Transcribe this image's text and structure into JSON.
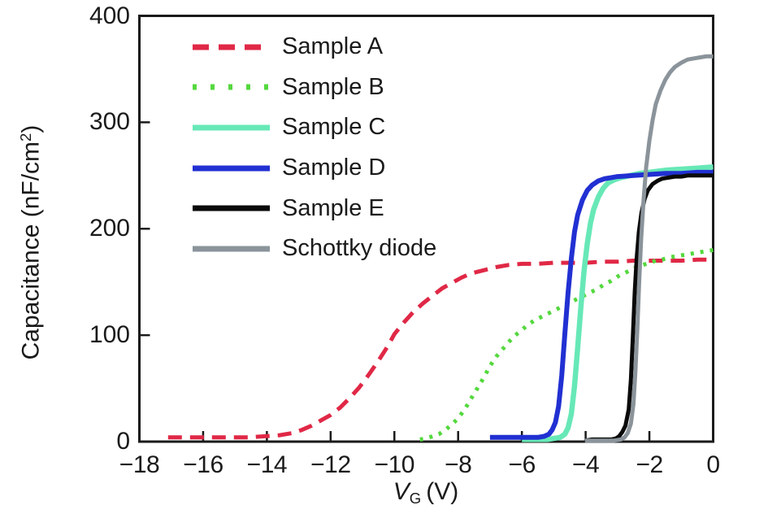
{
  "figure": {
    "background": "#ffffff",
    "axis_color": "#1a1a1a",
    "xlabel": {
      "var": "V",
      "sub": "G",
      "unit": " (V)"
    },
    "ylabel": {
      "pre": "Capacitance (nF/cm",
      "sup": "2",
      "post": ")"
    }
  },
  "chart_data": {
    "type": "line",
    "title": "",
    "xlabel": "V_G (V)",
    "ylabel": "Capacitance (nF/cm^2)",
    "xlim": [
      -18,
      0
    ],
    "ylim": [
      0,
      400
    ],
    "x_ticks": [
      -18,
      -16,
      -14,
      -12,
      -10,
      -8,
      -6,
      -4,
      -2,
      0
    ],
    "y_ticks": [
      0,
      100,
      200,
      300,
      400
    ],
    "grid": false,
    "legend_position": "upper-left-inside",
    "series": [
      {
        "name": "Sample A",
        "color": "#e02846",
        "style": "dashed",
        "width": 5,
        "points": [
          [
            -17.1,
            4
          ],
          [
            -16.6,
            4
          ],
          [
            -16.1,
            4
          ],
          [
            -15.6,
            4
          ],
          [
            -15.1,
            4
          ],
          [
            -14.6,
            4
          ],
          [
            -14.1,
            5
          ],
          [
            -13.6,
            6
          ],
          [
            -13.2,
            8
          ],
          [
            -12.9,
            11
          ],
          [
            -12.6,
            15
          ],
          [
            -12.3,
            20
          ],
          [
            -12.0,
            25
          ],
          [
            -11.7,
            32
          ],
          [
            -11.4,
            41
          ],
          [
            -11.1,
            51
          ],
          [
            -10.8,
            63
          ],
          [
            -10.5,
            76
          ],
          [
            -10.2,
            90
          ],
          [
            -10.0,
            101
          ],
          [
            -9.7,
            112
          ],
          [
            -9.4,
            122
          ],
          [
            -9.1,
            130
          ],
          [
            -8.8,
            137
          ],
          [
            -8.5,
            144
          ],
          [
            -8.2,
            149
          ],
          [
            -7.9,
            154
          ],
          [
            -7.6,
            158
          ],
          [
            -7.2,
            161
          ],
          [
            -6.8,
            164
          ],
          [
            -6.4,
            166
          ],
          [
            -6.0,
            167
          ],
          [
            -5.5,
            167
          ],
          [
            -5.0,
            168
          ],
          [
            -4.5,
            168
          ],
          [
            -4.0,
            168
          ],
          [
            -3.5,
            169
          ],
          [
            -3.0,
            169
          ],
          [
            -2.5,
            170
          ],
          [
            -2.0,
            170
          ],
          [
            -1.5,
            170
          ],
          [
            -1.0,
            170
          ],
          [
            -0.5,
            171
          ],
          [
            0,
            171
          ]
        ]
      },
      {
        "name": "Sample B",
        "color": "#54d83e",
        "style": "dotted",
        "width": 5,
        "points": [
          [
            -9.2,
            2
          ],
          [
            -9.0,
            3
          ],
          [
            -8.8,
            5
          ],
          [
            -8.6,
            7
          ],
          [
            -8.4,
            11
          ],
          [
            -8.2,
            16
          ],
          [
            -8.0,
            22
          ],
          [
            -7.8,
            30
          ],
          [
            -7.6,
            40
          ],
          [
            -7.4,
            50
          ],
          [
            -7.2,
            60
          ],
          [
            -7.0,
            71
          ],
          [
            -6.8,
            80
          ],
          [
            -6.6,
            87
          ],
          [
            -6.4,
            94
          ],
          [
            -6.2,
            100
          ],
          [
            -6.0,
            105
          ],
          [
            -5.8,
            110
          ],
          [
            -5.6,
            114
          ],
          [
            -5.4,
            117
          ],
          [
            -5.2,
            120
          ],
          [
            -5.0,
            123
          ],
          [
            -4.8,
            126
          ],
          [
            -4.6,
            129
          ],
          [
            -4.4,
            132
          ],
          [
            -4.2,
            135
          ],
          [
            -4.0,
            138
          ],
          [
            -3.8,
            141
          ],
          [
            -3.6,
            144
          ],
          [
            -3.4,
            148
          ],
          [
            -3.2,
            151
          ],
          [
            -3.0,
            155
          ],
          [
            -2.8,
            158
          ],
          [
            -2.6,
            161
          ],
          [
            -2.4,
            164
          ],
          [
            -2.2,
            166
          ],
          [
            -2.0,
            168
          ],
          [
            -1.8,
            170
          ],
          [
            -1.6,
            171
          ],
          [
            -1.4,
            173
          ],
          [
            -1.2,
            174
          ],
          [
            -1.0,
            175
          ],
          [
            -0.8,
            176
          ],
          [
            -0.6,
            177
          ],
          [
            -0.4,
            178
          ],
          [
            -0.2,
            179
          ],
          [
            0,
            180
          ]
        ]
      },
      {
        "name": "Sample C",
        "color": "#67e8b7",
        "style": "solid",
        "width": 6.5,
        "points": [
          [
            -6.0,
            2
          ],
          [
            -5.6,
            2
          ],
          [
            -5.2,
            2
          ],
          [
            -5.0,
            3
          ],
          [
            -4.8,
            4
          ],
          [
            -4.65,
            7
          ],
          [
            -4.55,
            13
          ],
          [
            -4.45,
            26
          ],
          [
            -4.35,
            52
          ],
          [
            -4.25,
            88
          ],
          [
            -4.15,
            126
          ],
          [
            -4.05,
            160
          ],
          [
            -3.95,
            186
          ],
          [
            -3.85,
            205
          ],
          [
            -3.75,
            218
          ],
          [
            -3.6,
            230
          ],
          [
            -3.45,
            238
          ],
          [
            -3.3,
            243
          ],
          [
            -3.1,
            246
          ],
          [
            -2.9,
            248
          ],
          [
            -2.6,
            250
          ],
          [
            -2.3,
            252
          ],
          [
            -2.0,
            253
          ],
          [
            -1.5,
            255
          ],
          [
            -1.0,
            256
          ],
          [
            -0.5,
            257
          ],
          [
            0,
            258
          ]
        ]
      },
      {
        "name": "Sample D",
        "color": "#2130d2",
        "style": "solid",
        "width": 6,
        "points": [
          [
            -7.0,
            4
          ],
          [
            -6.6,
            4
          ],
          [
            -6.2,
            4
          ],
          [
            -5.8,
            4
          ],
          [
            -5.5,
            4
          ],
          [
            -5.3,
            5
          ],
          [
            -5.15,
            7
          ],
          [
            -5.05,
            11
          ],
          [
            -4.95,
            18
          ],
          [
            -4.85,
            33
          ],
          [
            -4.75,
            62
          ],
          [
            -4.65,
            102
          ],
          [
            -4.55,
            140
          ],
          [
            -4.45,
            172
          ],
          [
            -4.35,
            197
          ],
          [
            -4.25,
            213
          ],
          [
            -4.1,
            227
          ],
          [
            -3.95,
            236
          ],
          [
            -3.8,
            241
          ],
          [
            -3.6,
            245
          ],
          [
            -3.4,
            247
          ],
          [
            -3.2,
            248
          ],
          [
            -3.0,
            249
          ],
          [
            -2.5,
            250
          ],
          [
            -2.0,
            251
          ],
          [
            -1.5,
            252
          ],
          [
            -1.0,
            252
          ],
          [
            -0.5,
            253
          ],
          [
            0,
            253
          ]
        ]
      },
      {
        "name": "Sample E",
        "color": "#0a0a0a",
        "style": "solid",
        "width": 5,
        "points": [
          [
            -4.02,
            1
          ],
          [
            -3.8,
            2
          ],
          [
            -3.6,
            2
          ],
          [
            -3.4,
            2
          ],
          [
            -3.2,
            2
          ],
          [
            -3.05,
            3
          ],
          [
            -2.95,
            5
          ],
          [
            -2.85,
            9
          ],
          [
            -2.75,
            15
          ],
          [
            -2.65,
            30
          ],
          [
            -2.58,
            58
          ],
          [
            -2.52,
            98
          ],
          [
            -2.46,
            140
          ],
          [
            -2.4,
            172
          ],
          [
            -2.33,
            197
          ],
          [
            -2.25,
            215
          ],
          [
            -2.15,
            228
          ],
          [
            -2.05,
            236
          ],
          [
            -1.9,
            242
          ],
          [
            -1.75,
            245
          ],
          [
            -1.6,
            247
          ],
          [
            -1.4,
            248
          ],
          [
            -1.2,
            249
          ],
          [
            -1.0,
            249
          ],
          [
            -0.8,
            250
          ],
          [
            -0.5,
            250
          ],
          [
            -0.2,
            250
          ],
          [
            0,
            250
          ]
        ]
      },
      {
        "name": "Schottky diode",
        "color": "#8b949b",
        "style": "solid",
        "width": 5,
        "points": [
          [
            -4.02,
            1
          ],
          [
            -3.8,
            1
          ],
          [
            -3.6,
            1
          ],
          [
            -3.4,
            1
          ],
          [
            -3.1,
            1
          ],
          [
            -2.9,
            2
          ],
          [
            -2.78,
            4
          ],
          [
            -2.68,
            8
          ],
          [
            -2.58,
            17
          ],
          [
            -2.5,
            35
          ],
          [
            -2.44,
            65
          ],
          [
            -2.38,
            105
          ],
          [
            -2.32,
            150
          ],
          [
            -2.26,
            190
          ],
          [
            -2.18,
            228
          ],
          [
            -2.1,
            258
          ],
          [
            -2.0,
            283
          ],
          [
            -1.9,
            302
          ],
          [
            -1.8,
            317
          ],
          [
            -1.65,
            330
          ],
          [
            -1.5,
            340
          ],
          [
            -1.35,
            347
          ],
          [
            -1.2,
            352
          ],
          [
            -1.0,
            356
          ],
          [
            -0.8,
            359
          ],
          [
            -0.6,
            360
          ],
          [
            -0.4,
            361
          ],
          [
            -0.2,
            362
          ],
          [
            0,
            362
          ]
        ]
      }
    ]
  }
}
